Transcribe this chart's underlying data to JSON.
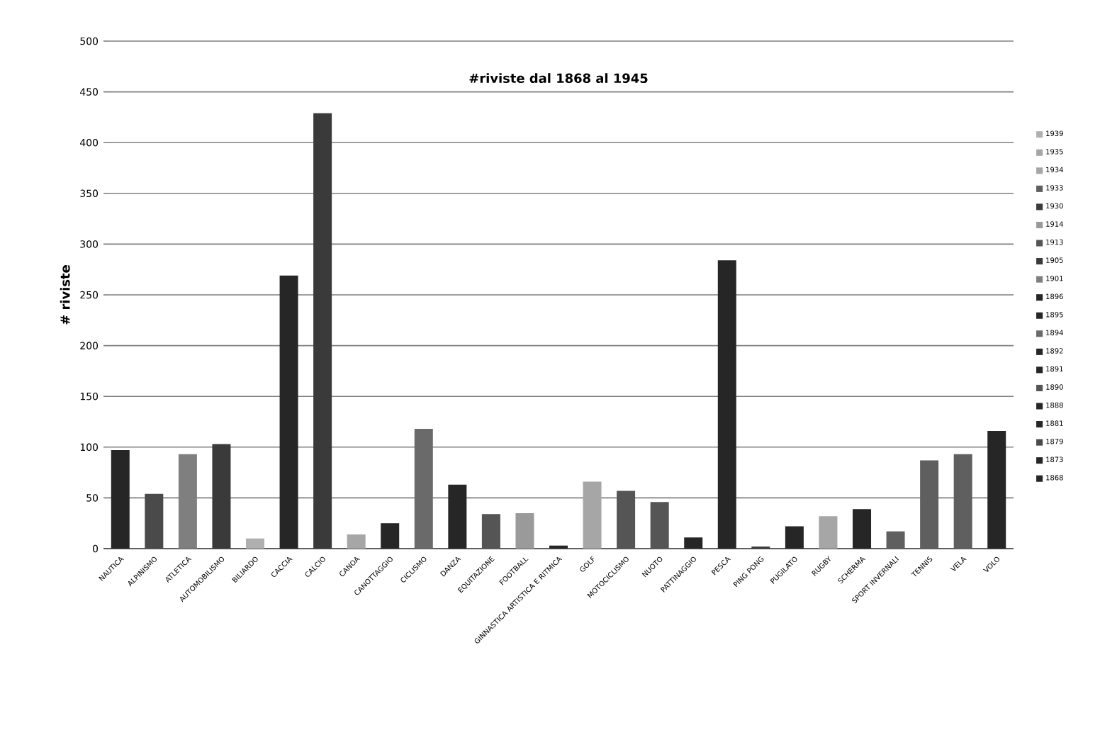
{
  "chart_data": {
    "type": "bar",
    "title": "#riviste dal 1868 al  1945",
    "ylabel": "# riviste",
    "categories": [
      "NAUTICA",
      "ALPINISMO",
      "ATLETICA",
      "AUTOMOBILISMO",
      "BILIARDO",
      "CACCIA",
      "CALCIO",
      "CANOA",
      "CANOTTAGGIO",
      "CICLISMO",
      "DANZA",
      "EQUITAZIONE",
      "FOOTBALL",
      "GINNASTICA  ARTISTICA  E RITMICA",
      "GOLF",
      "MOTOCICLISMO",
      "NUOTO",
      "PATTINAGGIO",
      "PESCA",
      "PING PONG",
      "PUGILATO",
      "RUGBY",
      "SCHERMA",
      "SPORT INVERNALI",
      "TENNIS",
      "VELA",
      "VOLO"
    ],
    "series": [
      {
        "name": "1868",
        "color": "#262626",
        "values": [
          null,
          null,
          null,
          null,
          null,
          269,
          null,
          null,
          null,
          null,
          null,
          null,
          null,
          null,
          null,
          null,
          null,
          null,
          null,
          null,
          null,
          null,
          null,
          null,
          null,
          null,
          null
        ]
      },
      {
        "name": "1873",
        "color": "#262626",
        "values": [
          97,
          null,
          null,
          null,
          null,
          null,
          null,
          null,
          null,
          null,
          null,
          null,
          null,
          null,
          null,
          null,
          null,
          null,
          null,
          null,
          null,
          null,
          null,
          null,
          null,
          null,
          null
        ]
      },
      {
        "name": "1879",
        "color": "#4a4a4a",
        "values": [
          null,
          54,
          null,
          null,
          null,
          null,
          null,
          null,
          null,
          null,
          null,
          null,
          null,
          null,
          null,
          null,
          null,
          null,
          null,
          null,
          null,
          null,
          null,
          null,
          null,
          null,
          null
        ]
      },
      {
        "name": "1881",
        "color": "#262626",
        "values": [
          null,
          null,
          null,
          null,
          null,
          null,
          null,
          null,
          null,
          null,
          null,
          null,
          null,
          3,
          null,
          null,
          null,
          null,
          null,
          null,
          null,
          null,
          null,
          null,
          null,
          null,
          null
        ]
      },
      {
        "name": "1888",
        "color": "#262626",
        "values": [
          null,
          null,
          null,
          null,
          null,
          null,
          null,
          null,
          null,
          null,
          null,
          null,
          null,
          null,
          null,
          null,
          null,
          null,
          null,
          null,
          null,
          null,
          39,
          null,
          null,
          null,
          null
        ]
      },
      {
        "name": "1890",
        "color": "#555555",
        "values": [
          null,
          null,
          null,
          null,
          null,
          null,
          null,
          null,
          null,
          null,
          null,
          34,
          null,
          null,
          null,
          null,
          null,
          null,
          null,
          null,
          null,
          null,
          null,
          null,
          null,
          null,
          null
        ]
      },
      {
        "name": "1891",
        "color": "#262626",
        "values": [
          null,
          null,
          null,
          null,
          null,
          null,
          null,
          null,
          null,
          null,
          null,
          null,
          null,
          null,
          null,
          null,
          null,
          null,
          284,
          null,
          null,
          null,
          null,
          null,
          null,
          null,
          116
        ]
      },
      {
        "name": "1892",
        "color": "#262626",
        "values": [
          null,
          null,
          null,
          null,
          null,
          null,
          null,
          null,
          null,
          null,
          63,
          null,
          null,
          null,
          null,
          null,
          null,
          null,
          null,
          null,
          null,
          null,
          null,
          null,
          null,
          null,
          null
        ]
      },
      {
        "name": "1894",
        "color": "#6a6a6a",
        "values": [
          null,
          null,
          null,
          null,
          null,
          null,
          null,
          null,
          null,
          118,
          null,
          null,
          null,
          null,
          null,
          null,
          null,
          null,
          null,
          null,
          null,
          null,
          null,
          null,
          null,
          null,
          null
        ]
      },
      {
        "name": "1895",
        "color": "#262626",
        "values": [
          null,
          null,
          null,
          null,
          null,
          null,
          null,
          null,
          25,
          null,
          null,
          null,
          null,
          null,
          null,
          null,
          null,
          null,
          null,
          null,
          null,
          null,
          null,
          null,
          null,
          null,
          null
        ]
      },
      {
        "name": "1896",
        "color": "#262626",
        "values": [
          null,
          null,
          null,
          null,
          null,
          null,
          null,
          null,
          null,
          null,
          null,
          null,
          null,
          null,
          null,
          null,
          null,
          11,
          null,
          null,
          22,
          null,
          null,
          null,
          null,
          null,
          null
        ]
      },
      {
        "name": "1901",
        "color": "#7f7f7f",
        "values": [
          null,
          null,
          93,
          null,
          null,
          null,
          null,
          null,
          null,
          null,
          null,
          null,
          null,
          null,
          null,
          null,
          null,
          null,
          null,
          null,
          null,
          null,
          null,
          null,
          null,
          null,
          null
        ]
      },
      {
        "name": "1905",
        "color": "#3a3a3a",
        "values": [
          null,
          null,
          null,
          103,
          null,
          null,
          429,
          null,
          null,
          null,
          null,
          null,
          null,
          null,
          null,
          null,
          null,
          null,
          null,
          null,
          null,
          null,
          null,
          null,
          null,
          null,
          null
        ]
      },
      {
        "name": "1913",
        "color": "#555555",
        "values": [
          null,
          null,
          null,
          null,
          null,
          null,
          null,
          null,
          null,
          null,
          null,
          null,
          null,
          null,
          null,
          57,
          46,
          null,
          null,
          null,
          null,
          null,
          null,
          null,
          null,
          null,
          null
        ]
      },
      {
        "name": "1914",
        "color": "#9a9a9a",
        "values": [
          null,
          null,
          null,
          null,
          null,
          null,
          null,
          null,
          null,
          null,
          null,
          null,
          35,
          null,
          null,
          null,
          null,
          null,
          null,
          null,
          null,
          null,
          null,
          null,
          null,
          null,
          null
        ]
      },
      {
        "name": "1930",
        "color": "#3a3a3a",
        "values": [
          null,
          null,
          null,
          null,
          null,
          null,
          null,
          null,
          null,
          null,
          null,
          null,
          null,
          null,
          null,
          null,
          null,
          null,
          null,
          2,
          null,
          null,
          null,
          null,
          null,
          null,
          null
        ]
      },
      {
        "name": "1933",
        "color": "#5f5f5f",
        "values": [
          null,
          null,
          null,
          null,
          null,
          null,
          null,
          null,
          null,
          null,
          null,
          null,
          null,
          null,
          null,
          null,
          null,
          null,
          null,
          null,
          null,
          null,
          null,
          17,
          87,
          93,
          null
        ]
      },
      {
        "name": "1934",
        "color": "#a6a6a6",
        "values": [
          null,
          null,
          null,
          null,
          null,
          null,
          null,
          null,
          null,
          null,
          null,
          null,
          null,
          null,
          66,
          null,
          null,
          null,
          null,
          null,
          null,
          32,
          null,
          null,
          null,
          null,
          null
        ]
      },
      {
        "name": "1935",
        "color": "#a6a6a6",
        "values": [
          null,
          null,
          null,
          null,
          null,
          null,
          null,
          14,
          null,
          null,
          null,
          null,
          null,
          null,
          null,
          null,
          null,
          null,
          null,
          null,
          null,
          null,
          null,
          null,
          null,
          null,
          null
        ]
      },
      {
        "name": "1939",
        "color": "#b0b0b0",
        "values": [
          null,
          null,
          null,
          null,
          10,
          null,
          null,
          null,
          null,
          null,
          null,
          null,
          null,
          null,
          null,
          null,
          null,
          null,
          null,
          null,
          null,
          null,
          null,
          null,
          null,
          null,
          null
        ]
      }
    ],
    "ylim": [
      0,
      500
    ],
    "yticks": [
      0,
      50,
      100,
      150,
      200,
      250,
      300,
      350,
      400,
      450,
      500
    ],
    "grid": "y",
    "legend": "right"
  }
}
